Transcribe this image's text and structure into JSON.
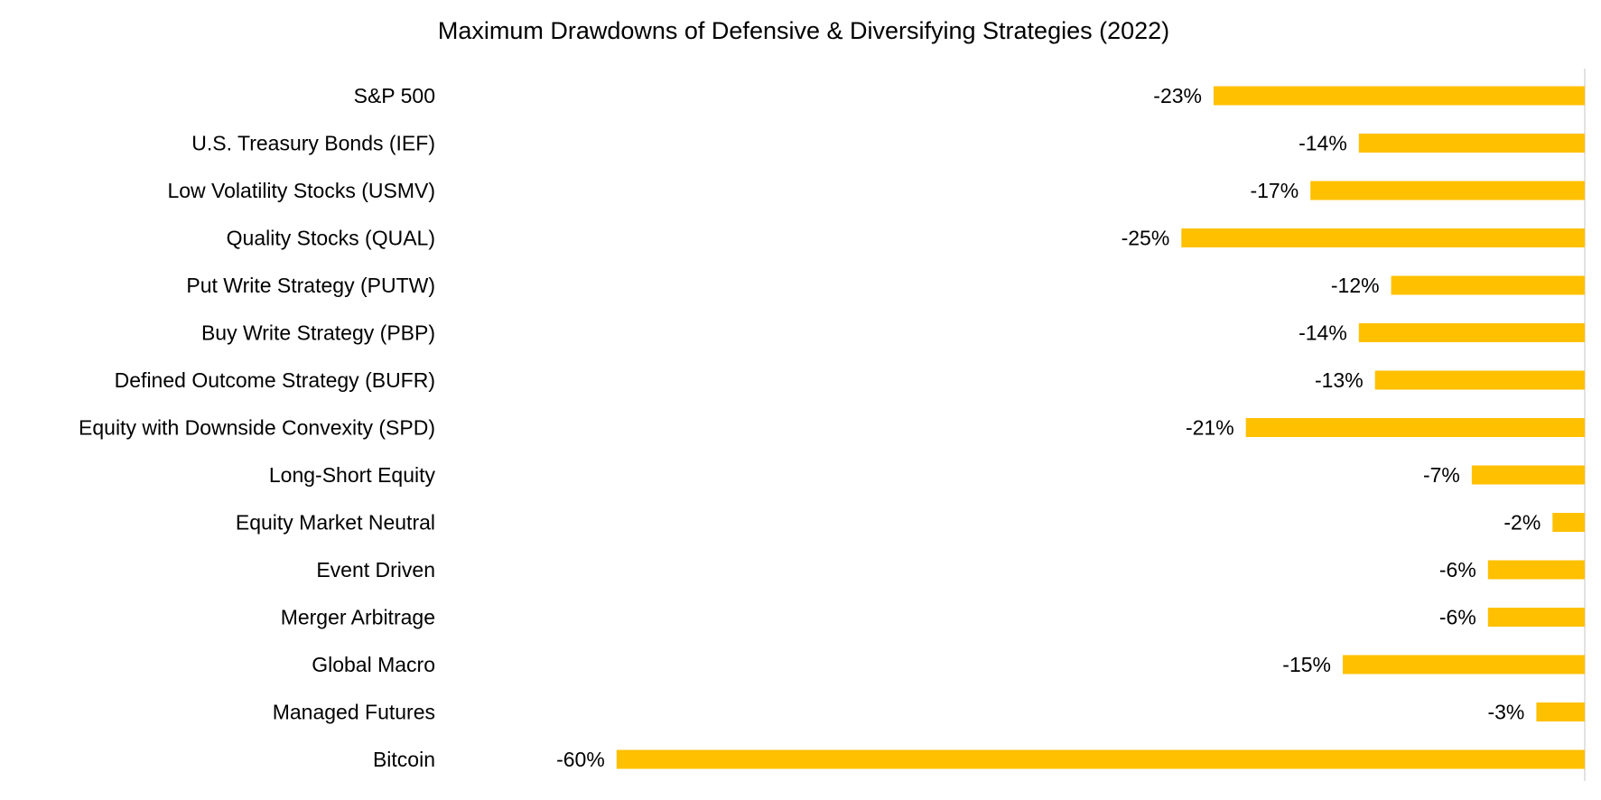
{
  "chart_data": {
    "type": "bar",
    "orientation": "horizontal",
    "title": "Maximum Drawdowns of Defensive & Diversifying Strategies (2022)",
    "xlabel": "",
    "ylabel": "",
    "categories": [
      "S&P 500",
      "U.S. Treasury Bonds (IEF)",
      "Low Volatility Stocks (USMV)",
      "Quality Stocks (QUAL)",
      "Put Write Strategy (PUTW)",
      "Buy Write Strategy (PBP)",
      "Defined Outcome Strategy (BUFR)",
      "Equity with Downside Convexity (SPD)",
      "Long-Short Equity",
      "Equity Market Neutral",
      "Event Driven",
      "Merger Arbitrage",
      "Global Macro",
      "Managed Futures",
      "Bitcoin"
    ],
    "values": [
      -23,
      -14,
      -17,
      -25,
      -12,
      -14,
      -13,
      -21,
      -7,
      -2,
      -6,
      -6,
      -15,
      -3,
      -60
    ],
    "labels": [
      "-23%",
      "-14%",
      "-17%",
      "-25%",
      "-12%",
      "-14%",
      "-13%",
      "-21%",
      "-7%",
      "-2%",
      "-6%",
      "-6%",
      "-15%",
      "-3%",
      "-60%"
    ],
    "value_unit": "%",
    "xlim": [
      -60,
      0
    ],
    "grid": false,
    "legend": "none",
    "bar_color": "#FFC000",
    "axis_color": "#D9D9D9"
  }
}
